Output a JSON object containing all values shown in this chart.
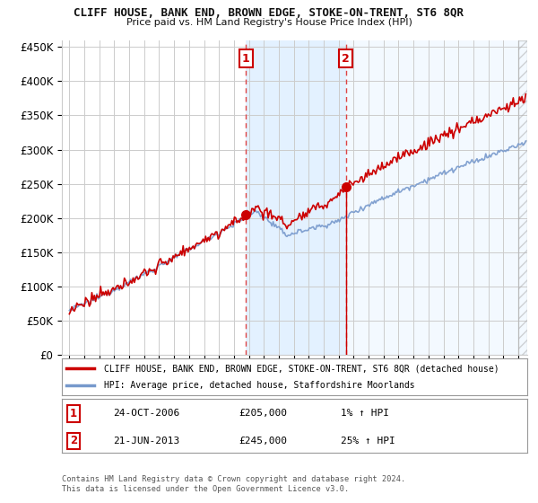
{
  "title": "CLIFF HOUSE, BANK END, BROWN EDGE, STOKE-ON-TRENT, ST6 8QR",
  "subtitle": "Price paid vs. HM Land Registry's House Price Index (HPI)",
  "ylabel_values": [
    "£0",
    "£50K",
    "£100K",
    "£150K",
    "£200K",
    "£250K",
    "£300K",
    "£350K",
    "£400K",
    "£450K"
  ],
  "yticks": [
    0,
    50000,
    100000,
    150000,
    200000,
    250000,
    300000,
    350000,
    400000,
    450000
  ],
  "ylim": [
    0,
    460000
  ],
  "xlim_start": 1994.5,
  "xlim_end": 2025.6,
  "legend_line1": "CLIFF HOUSE, BANK END, BROWN EDGE, STOKE-ON-TRENT, ST6 8QR (detached house)",
  "legend_line2": "HPI: Average price, detached house, Staffordshire Moorlands",
  "annotation1_date": "24-OCT-2006",
  "annotation1_price": "£205,000",
  "annotation1_hpi": "1% ↑ HPI",
  "annotation2_date": "21-JUN-2013",
  "annotation2_price": "£245,000",
  "annotation2_hpi": "25% ↑ HPI",
  "vline1_x": 2006.81,
  "vline2_x": 2013.47,
  "sale1_y": 205000,
  "sale2_y": 245000,
  "footer1": "Contains HM Land Registry data © Crown copyright and database right 2024.",
  "footer2": "This data is licensed under the Open Government Licence v3.0.",
  "red_color": "#cc0000",
  "blue_color": "#7799cc",
  "vline_color": "#dd4444",
  "bg_highlight_color": "#ddeeff",
  "grid_color": "#cccccc",
  "background_color": "#ffffff"
}
